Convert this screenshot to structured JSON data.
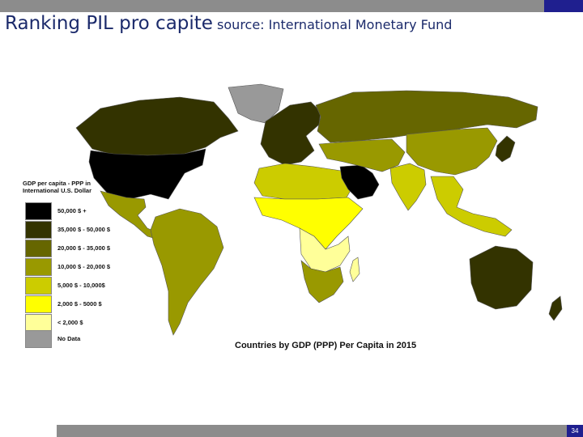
{
  "slide": {
    "title_main": "Ranking PIL pro capite",
    "title_source": "source: International Monetary Fund",
    "page_number": "34"
  },
  "map": {
    "caption": "Countries by GDP (PPP) Per Capita in 2015",
    "ocean_color": "#ffffff",
    "legend": {
      "title": "GDP per capita - PPP in International U.S. Dollar",
      "items": [
        {
          "label": "50,000 $ +",
          "color": "#000000"
        },
        {
          "label": "35,000 $ - 50,000 $",
          "color": "#333300"
        },
        {
          "label": "20,000 $ - 35,000 $",
          "color": "#666600"
        },
        {
          "label": "10,000 $ - 20,000 $",
          "color": "#999900"
        },
        {
          "label": "5,000 $ - 10,000$",
          "color": "#cccc00"
        },
        {
          "label": "2,000 $ - 5000 $",
          "color": "#ffff00"
        },
        {
          "label": "< 2,000 $",
          "color": "#ffff99"
        },
        {
          "label": "No Data",
          "color": "#999999"
        }
      ]
    },
    "regions": [
      {
        "name": "greenland",
        "tier": "No Data"
      },
      {
        "name": "canada",
        "tier": "35,000 $ - 50,000 $"
      },
      {
        "name": "usa",
        "tier": "50,000 $ +"
      },
      {
        "name": "mexico-central-america",
        "tier": "10,000 $ - 20,000 $"
      },
      {
        "name": "south-america",
        "tier": "10,000 $ - 20,000 $"
      },
      {
        "name": "europe",
        "tier": "35,000 $ - 50,000 $"
      },
      {
        "name": "russia",
        "tier": "20,000 $ - 35,000 $"
      },
      {
        "name": "north-africa",
        "tier": "5,000 $ - 10,000$"
      },
      {
        "name": "sub-saharan-africa",
        "tier": "2,000 $ - 5000 $"
      },
      {
        "name": "central-africa",
        "tier": "< 2,000 $"
      },
      {
        "name": "southern-africa",
        "tier": "10,000 $ - 20,000 $"
      },
      {
        "name": "arabian-peninsula",
        "tier": "50,000 $ +"
      },
      {
        "name": "middle-east-central-asia",
        "tier": "10,000 $ - 20,000 $"
      },
      {
        "name": "china",
        "tier": "10,000 $ - 20,000 $"
      },
      {
        "name": "india",
        "tier": "5,000 $ - 10,000$"
      },
      {
        "name": "southeast-asia",
        "tier": "5,000 $ - 10,000$"
      },
      {
        "name": "japan-korea",
        "tier": "35,000 $ - 50,000 $"
      },
      {
        "name": "australia",
        "tier": "35,000 $ - 50,000 $"
      },
      {
        "name": "new-zealand",
        "tier": "35,000 $ - 50,000 $"
      }
    ]
  }
}
